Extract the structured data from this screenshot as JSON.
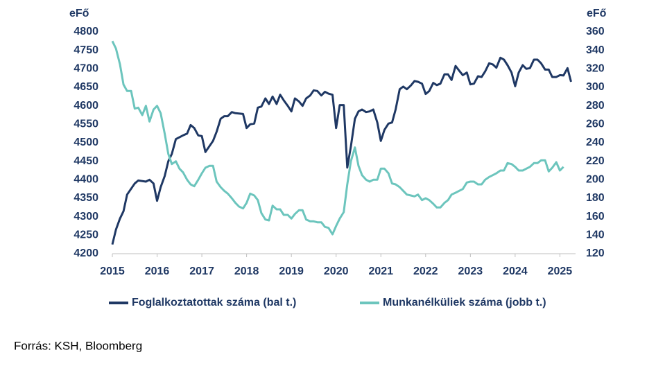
{
  "chart_data": {
    "type": "line",
    "y_label": "eFő",
    "y2_label": "eFő",
    "source": "Forrás: KSH, Bloomberg",
    "xlim": [
      2015,
      2025.35
    ],
    "xticks": [
      2015,
      2016,
      2017,
      2018,
      2019,
      2020,
      2021,
      2022,
      2023,
      2024,
      2025
    ],
    "ylim": [
      4200,
      4800
    ],
    "yticks": [
      4200,
      4250,
      4300,
      4350,
      4400,
      4450,
      4500,
      4550,
      4600,
      4650,
      4700,
      4750,
      4800
    ],
    "y2lim": [
      120,
      360
    ],
    "y2ticks": [
      120,
      140,
      160,
      180,
      200,
      220,
      240,
      260,
      280,
      300,
      320,
      340,
      360
    ],
    "series": [
      {
        "name": "Foglalkoztatottak száma (bal t.)",
        "color": "#1f3864",
        "x": [
          2015.0,
          2015.08,
          2015.17,
          2015.25,
          2015.33,
          2015.5,
          2015.58,
          2015.75,
          2015.83,
          2015.92,
          2016.0,
          2016.08,
          2016.17,
          2016.25,
          2016.33,
          2016.42,
          2016.58,
          2016.67,
          2016.75,
          2016.83,
          2016.92,
          2017.0,
          2017.08,
          2017.25,
          2017.33,
          2017.42,
          2017.5,
          2017.58,
          2017.67,
          2017.75,
          2017.92,
          2018.0,
          2018.08,
          2018.17,
          2018.25,
          2018.33,
          2018.42,
          2018.5,
          2018.58,
          2018.67,
          2018.75,
          2018.83,
          2018.92,
          2019.0,
          2019.08,
          2019.17,
          2019.25,
          2019.33,
          2019.42,
          2019.5,
          2019.58,
          2019.67,
          2019.75,
          2019.83,
          2019.92,
          2020.0,
          2020.08,
          2020.17,
          2020.25,
          2020.33,
          2020.42,
          2020.5,
          2020.58,
          2020.67,
          2020.75,
          2020.83,
          2020.92,
          2021.0,
          2021.08,
          2021.17,
          2021.25,
          2021.33,
          2021.42,
          2021.5,
          2021.58,
          2021.67,
          2021.75,
          2021.83,
          2021.92,
          2022.0,
          2022.08,
          2022.17,
          2022.25,
          2022.33,
          2022.42,
          2022.5,
          2022.58,
          2022.67,
          2022.75,
          2022.83,
          2022.92,
          2023.0,
          2023.08,
          2023.17,
          2023.25,
          2023.33,
          2023.42,
          2023.5,
          2023.58,
          2023.67,
          2023.75,
          2023.83,
          2023.92,
          2024.0,
          2024.08,
          2024.17,
          2024.25,
          2024.33,
          2024.42,
          2024.5,
          2024.58,
          2024.67,
          2024.75,
          2024.83,
          2024.92,
          2025.0,
          2025.08,
          2025.17,
          2025.25
        ],
        "values": [
          4225,
          4265,
          4295,
          4315,
          4360,
          4390,
          4398,
          4395,
          4400,
          4390,
          4343,
          4380,
          4410,
          4450,
          4470,
          4510,
          4520,
          4525,
          4548,
          4540,
          4520,
          4518,
          4475,
          4505,
          4530,
          4565,
          4572,
          4572,
          4583,
          4580,
          4578,
          4540,
          4550,
          4552,
          4595,
          4598,
          4620,
          4605,
          4625,
          4605,
          4630,
          4615,
          4600,
          4585,
          4620,
          4612,
          4600,
          4620,
          4628,
          4642,
          4640,
          4628,
          4638,
          4633,
          4630,
          4540,
          4602,
          4602,
          4433,
          4490,
          4565,
          4585,
          4590,
          4583,
          4585,
          4590,
          4555,
          4505,
          4535,
          4552,
          4555,
          4590,
          4645,
          4652,
          4645,
          4655,
          4667,
          4665,
          4660,
          4632,
          4640,
          4662,
          4656,
          4660,
          4685,
          4685,
          4670,
          4708,
          4695,
          4683,
          4690,
          4658,
          4660,
          4680,
          4678,
          4693,
          4715,
          4712,
          4703,
          4730,
          4725,
          4710,
          4690,
          4653,
          4690,
          4710,
          4700,
          4702,
          4725,
          4725,
          4715,
          4698,
          4698,
          4678,
          4678,
          4683,
          4682,
          4702,
          4665
        ]
      },
      {
        "name": "Munkanélküliek száma (jobb t.)",
        "color": "#6cc5bd",
        "axis": "y2",
        "x": [
          2015.0,
          2015.08,
          2015.17,
          2015.25,
          2015.33,
          2015.42,
          2015.5,
          2015.58,
          2015.67,
          2015.75,
          2015.83,
          2015.92,
          2016.0,
          2016.08,
          2016.17,
          2016.25,
          2016.33,
          2016.42,
          2016.5,
          2016.58,
          2016.67,
          2016.75,
          2016.83,
          2016.92,
          2017.0,
          2017.08,
          2017.17,
          2017.25,
          2017.33,
          2017.42,
          2017.5,
          2017.58,
          2017.67,
          2017.75,
          2017.83,
          2017.92,
          2018.0,
          2018.08,
          2018.17,
          2018.25,
          2018.33,
          2018.42,
          2018.5,
          2018.58,
          2018.67,
          2018.75,
          2018.83,
          2018.92,
          2019.0,
          2019.08,
          2019.17,
          2019.25,
          2019.33,
          2019.42,
          2019.5,
          2019.58,
          2019.67,
          2019.75,
          2019.83,
          2019.92,
          2020.0,
          2020.08,
          2020.17,
          2020.25,
          2020.33,
          2020.42,
          2020.5,
          2020.58,
          2020.67,
          2020.75,
          2020.83,
          2020.92,
          2021.0,
          2021.08,
          2021.17,
          2021.25,
          2021.33,
          2021.42,
          2021.5,
          2021.58,
          2021.67,
          2021.75,
          2021.83,
          2021.92,
          2022.0,
          2022.08,
          2022.17,
          2022.25,
          2022.33,
          2022.42,
          2022.5,
          2022.58,
          2022.67,
          2022.75,
          2022.83,
          2022.92,
          2023.0,
          2023.08,
          2023.17,
          2023.25,
          2023.33,
          2023.42,
          2023.5,
          2023.58,
          2023.67,
          2023.75,
          2023.83,
          2023.92,
          2024.0,
          2024.08,
          2024.17,
          2024.25,
          2024.33,
          2024.42,
          2024.5,
          2024.58,
          2024.67,
          2024.75,
          2024.83,
          2024.92,
          2025.0,
          2025.08
        ],
        "values": [
          350,
          342,
          325,
          303,
          296,
          296,
          277,
          278,
          270,
          280,
          263,
          276,
          280,
          272,
          250,
          228,
          217,
          220,
          212,
          208,
          200,
          195,
          193,
          200,
          207,
          213,
          215,
          215,
          198,
          192,
          188,
          185,
          180,
          175,
          171,
          169,
          175,
          185,
          183,
          178,
          164,
          157,
          156,
          172,
          168,
          168,
          162,
          162,
          158,
          163,
          167,
          167,
          157,
          155,
          155,
          154,
          154,
          149,
          148,
          141,
          150,
          158,
          165,
          195,
          220,
          235,
          215,
          205,
          200,
          198,
          200,
          200,
          212,
          212,
          207,
          196,
          195,
          192,
          188,
          184,
          183,
          182,
          184,
          178,
          180,
          178,
          174,
          170,
          170,
          175,
          178,
          184,
          186,
          188,
          190,
          197,
          198,
          198,
          195,
          195,
          200,
          203,
          205,
          207,
          210,
          210,
          218,
          217,
          214,
          210,
          210,
          212,
          214,
          218,
          218,
          221,
          221,
          209,
          213,
          219,
          210,
          214
        ]
      }
    ]
  }
}
